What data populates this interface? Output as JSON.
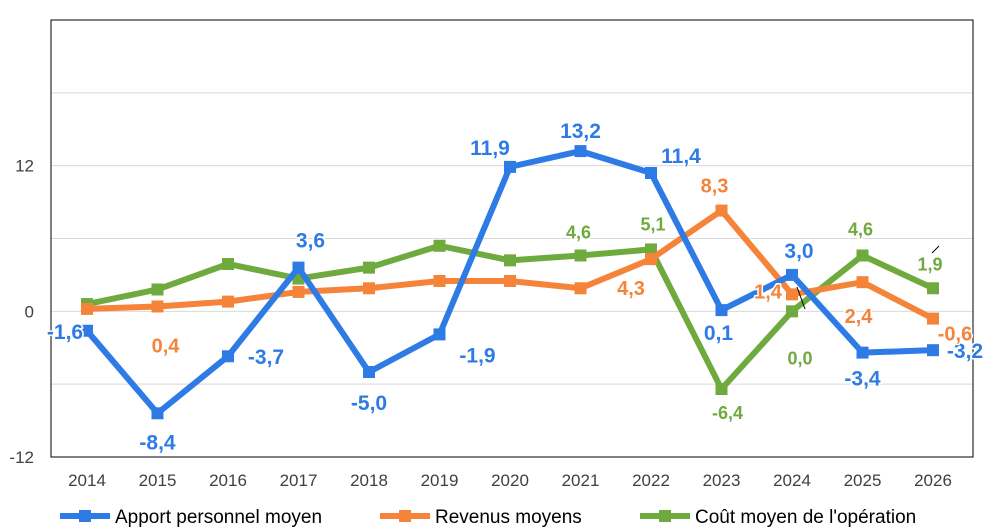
{
  "chart_data": {
    "type": "line",
    "title": "",
    "xlabel": "",
    "ylabel": "",
    "categories": [
      "2014",
      "2015",
      "2016",
      "2017",
      "2018",
      "2019",
      "2020",
      "2021",
      "2022",
      "2023",
      "2024",
      "2025",
      "2026"
    ],
    "ylim": [
      -12,
      24
    ],
    "yticks": [
      -12,
      0,
      12
    ],
    "ytick_labels": [
      "-12",
      "0",
      "12"
    ],
    "grid": true,
    "legend_position": "bottom",
    "series": [
      {
        "name": "Apport personnel moyen",
        "color": "#2E7BE5",
        "values": [
          -1.6,
          -8.4,
          -3.7,
          3.6,
          -5.0,
          -1.9,
          11.9,
          13.2,
          11.4,
          0.1,
          3.0,
          -3.4,
          -3.2
        ],
        "labels": [
          "-1,6",
          "-8,4",
          "-3,7",
          "3,6",
          "-5,0",
          "-1,9",
          "11,9",
          "13,2",
          "11,4",
          "0,1",
          "3,0",
          "-3,4",
          "-3,2"
        ]
      },
      {
        "name": "Revenus moyens",
        "color": "#F5843A",
        "values": [
          0.2,
          0.4,
          0.8,
          1.6,
          1.9,
          2.5,
          2.5,
          1.9,
          4.3,
          8.3,
          1.4,
          2.4,
          -0.6
        ],
        "labels": {
          "1": "0,4",
          "8": "4,3",
          "9": "8,3",
          "10": "1,4",
          "11": "2,4",
          "12": "-0,6"
        }
      },
      {
        "name": "Coût moyen de l'opération",
        "color": "#6FAA3E",
        "values": [
          0.6,
          1.8,
          3.9,
          2.7,
          3.6,
          5.4,
          4.2,
          4.6,
          5.1,
          -6.4,
          0.0,
          4.6,
          1.9
        ],
        "labels": {
          "7": "4,6",
          "8": "5,1",
          "9": "-6,4",
          "10": "0,0",
          "11": "4,6",
          "12": "1,9"
        }
      }
    ]
  }
}
